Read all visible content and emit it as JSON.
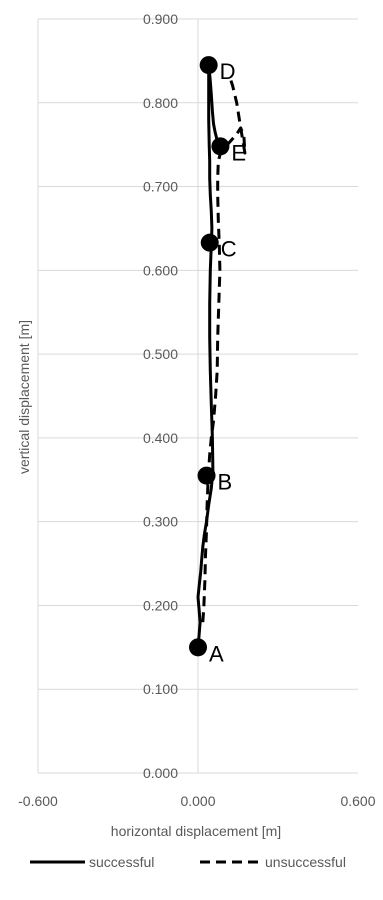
{
  "chart_data": {
    "type": "scatter",
    "title": "",
    "xlabel": "horizontal displacement [m]",
    "ylabel": "vertical displacement [m]",
    "xlim": [
      -0.6,
      0.6
    ],
    "ylim": [
      0.0,
      0.9
    ],
    "x_ticks": [
      "-0.600",
      "0.000",
      "0.600"
    ],
    "y_ticks": [
      "0.000",
      "0.100",
      "0.200",
      "0.300",
      "0.400",
      "0.500",
      "0.600",
      "0.700",
      "0.800",
      "0.900"
    ],
    "legend_position": "bottom",
    "colors": {
      "line": "#000000",
      "axis": "#d9d9d9",
      "text": "#595959"
    },
    "series": [
      {
        "name": "successful",
        "style": "solid",
        "x": [
          0.0,
          0.004,
          0.008,
          0.004,
          0.0,
          0.005,
          0.01,
          0.014,
          0.018,
          0.024,
          0.032,
          0.04,
          0.05,
          0.056,
          0.054,
          0.05,
          0.046,
          0.044,
          0.044,
          0.046,
          0.05,
          0.052,
          0.05,
          0.046,
          0.044,
          0.044,
          0.042,
          0.04,
          0.04,
          0.04,
          0.04,
          0.045,
          0.05,
          0.054,
          0.058,
          0.064,
          0.072,
          0.08,
          0.084
        ],
        "y": [
          0.15,
          0.165,
          0.18,
          0.195,
          0.21,
          0.225,
          0.24,
          0.255,
          0.27,
          0.285,
          0.3,
          0.32,
          0.34,
          0.36,
          0.4,
          0.44,
          0.48,
          0.52,
          0.56,
          0.6,
          0.63,
          0.65,
          0.67,
          0.69,
          0.71,
          0.73,
          0.75,
          0.78,
          0.8,
          0.82,
          0.845,
          0.83,
          0.81,
          0.79,
          0.775,
          0.765,
          0.755,
          0.75,
          0.748
        ]
      },
      {
        "name": "unsuccessful",
        "style": "dashed",
        "x": [
          0.018,
          0.022,
          0.026,
          0.028,
          0.032,
          0.034,
          0.038,
          0.044,
          0.05,
          0.058,
          0.066,
          0.072,
          0.074,
          0.078,
          0.082,
          0.08,
          0.076,
          0.074,
          0.074,
          0.076,
          0.084,
          0.096,
          0.11,
          0.124,
          0.138,
          0.15,
          0.16,
          0.172,
          0.176,
          0.16,
          0.145,
          0.13,
          0.118
        ],
        "y": [
          0.18,
          0.2,
          0.23,
          0.26,
          0.29,
          0.32,
          0.35,
          0.38,
          0.4,
          0.42,
          0.45,
          0.48,
          0.52,
          0.56,
          0.6,
          0.63,
          0.66,
          0.69,
          0.71,
          0.73,
          0.74,
          0.745,
          0.75,
          0.755,
          0.76,
          0.765,
          0.77,
          0.76,
          0.74,
          0.77,
          0.8,
          0.82,
          0.832
        ]
      }
    ],
    "points": [
      {
        "label": "A",
        "x": 0.0,
        "y": 0.15
      },
      {
        "label": "B",
        "x": 0.032,
        "y": 0.355
      },
      {
        "label": "C",
        "x": 0.044,
        "y": 0.633
      },
      {
        "label": "D",
        "x": 0.04,
        "y": 0.845
      },
      {
        "label": "E",
        "x": 0.084,
        "y": 0.748
      }
    ]
  }
}
